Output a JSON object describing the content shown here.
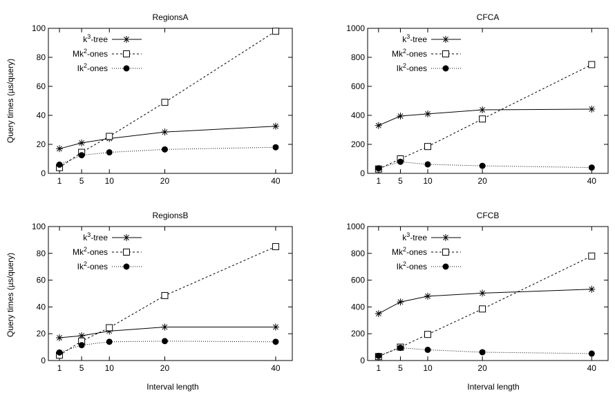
{
  "figure": {
    "ylabel": "Query times (µs/query)",
    "xlabel": "Interval length"
  },
  "chart_data": [
    {
      "type": "line",
      "title": "RegionsA",
      "x": [
        1,
        5,
        10,
        20,
        40
      ],
      "xticks": [
        1,
        5,
        10,
        20,
        40
      ],
      "xlim": [
        -1,
        43
      ],
      "ylim": [
        0,
        100
      ],
      "yticks": [
        0,
        20,
        40,
        60,
        80,
        100
      ],
      "legend": "top-left",
      "series": [
        {
          "base": "k",
          "sup": "3",
          "rest": "-tree",
          "marker": "star",
          "dash": "solid",
          "values": [
            17,
            21,
            24,
            28.5,
            32.5
          ]
        },
        {
          "base": "Mk",
          "sup": "2",
          "rest": "-ones",
          "marker": "square",
          "dash": "dashed",
          "values": [
            4,
            14.5,
            25.5,
            49,
            98
          ]
        },
        {
          "base": "Ik",
          "sup": "2",
          "rest": "-ones",
          "marker": "circle",
          "dash": "dotted",
          "values": [
            6,
            12.5,
            14.5,
            16.5,
            18
          ]
        }
      ]
    },
    {
      "type": "line",
      "title": "CFCA",
      "x": [
        1,
        5,
        10,
        20,
        40
      ],
      "xticks": [
        1,
        5,
        10,
        20,
        40
      ],
      "xlim": [
        -1,
        43
      ],
      "ylim": [
        0,
        1000
      ],
      "yticks": [
        0,
        200,
        400,
        600,
        800,
        1000
      ],
      "legend": "top-left",
      "series": [
        {
          "base": "k",
          "sup": "3",
          "rest": "-tree",
          "marker": "star",
          "dash": "solid",
          "values": [
            330,
            395,
            410,
            438,
            443
          ]
        },
        {
          "base": "Mk",
          "sup": "2",
          "rest": "-ones",
          "marker": "square",
          "dash": "dashed",
          "values": [
            30,
            100,
            185,
            375,
            750
          ]
        },
        {
          "base": "Ik",
          "sup": "2",
          "rest": "-ones",
          "marker": "circle",
          "dash": "dotted",
          "values": [
            35,
            80,
            62,
            52,
            40
          ]
        }
      ]
    },
    {
      "type": "line",
      "title": "RegionsB",
      "x": [
        1,
        5,
        10,
        20,
        40
      ],
      "xticks": [
        1,
        5,
        10,
        20,
        40
      ],
      "xlim": [
        -1,
        43
      ],
      "ylim": [
        0,
        100
      ],
      "yticks": [
        0,
        20,
        40,
        60,
        80,
        100
      ],
      "legend": "top-left",
      "series": [
        {
          "base": "k",
          "sup": "3",
          "rest": "-tree",
          "marker": "star",
          "dash": "solid",
          "values": [
            17,
            18.5,
            22,
            25,
            25
          ]
        },
        {
          "base": "Mk",
          "sup": "2",
          "rest": "-ones",
          "marker": "square",
          "dash": "dashed",
          "values": [
            4,
            14.5,
            24.5,
            48.5,
            85
          ]
        },
        {
          "base": "Ik",
          "sup": "2",
          "rest": "-ones",
          "marker": "circle",
          "dash": "dotted",
          "values": [
            6,
            11.5,
            14,
            14.5,
            14
          ]
        }
      ]
    },
    {
      "type": "line",
      "title": "CFCB",
      "x": [
        1,
        5,
        10,
        20,
        40
      ],
      "xticks": [
        1,
        5,
        10,
        20,
        40
      ],
      "xlim": [
        -1,
        43
      ],
      "ylim": [
        0,
        1000
      ],
      "yticks": [
        0,
        200,
        400,
        600,
        800,
        1000
      ],
      "legend": "top-left",
      "series": [
        {
          "base": "k",
          "sup": "3",
          "rest": "-tree",
          "marker": "star",
          "dash": "solid",
          "values": [
            350,
            437,
            480,
            503,
            532
          ]
        },
        {
          "base": "Mk",
          "sup": "2",
          "rest": "-ones",
          "marker": "square",
          "dash": "dashed",
          "values": [
            30,
            100,
            195,
            385,
            780
          ]
        },
        {
          "base": "Ik",
          "sup": "2",
          "rest": "-ones",
          "marker": "circle",
          "dash": "dotted",
          "values": [
            35,
            95,
            80,
            62,
            52
          ]
        }
      ]
    }
  ]
}
